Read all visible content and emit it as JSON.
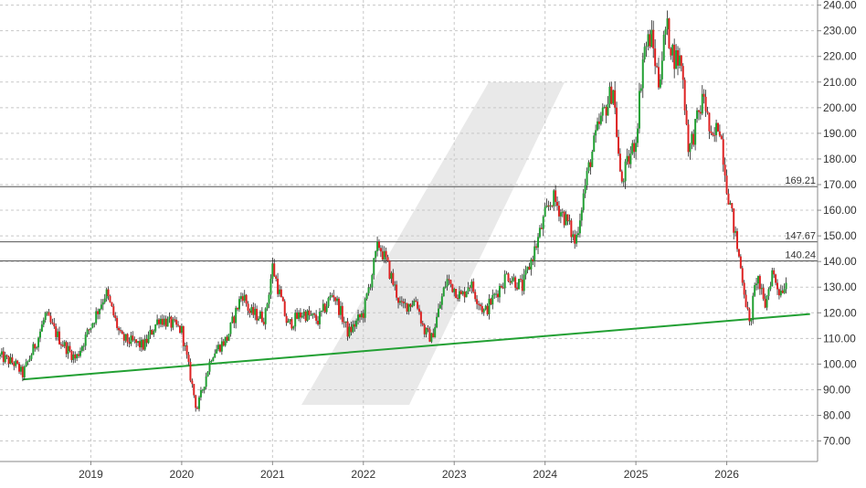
{
  "chart_data": {
    "type": "candlestick",
    "x_ticks": [
      "2019",
      "2020",
      "2021",
      "2022",
      "2023",
      "2024",
      "2025",
      "2026"
    ],
    "y_ticks": [
      "240.00",
      "230.00",
      "220.00",
      "210.00",
      "200.00",
      "190.00",
      "180.00",
      "170.00",
      "160.00",
      "150.00",
      "140.00",
      "130.00",
      "120.00",
      "110.00",
      "100.00",
      "90.00",
      "80.00",
      "70.00"
    ],
    "ylim": [
      62,
      242
    ],
    "xlim": [
      "2018-01",
      "2027-01"
    ],
    "grid": true,
    "horizontal_levels": [
      {
        "value": 169.21,
        "label": "169.21"
      },
      {
        "value": 147.67,
        "label": "147.67"
      },
      {
        "value": 140.24,
        "label": "140.24"
      }
    ],
    "trendline": {
      "start": {
        "x": "2018-04",
        "y": 94
      },
      "end": {
        "x": "2026-12",
        "y": 119.5
      },
      "color": "#22a033"
    },
    "candle_colors": {
      "up": "#22a033",
      "down": "#dd2222"
    },
    "price_path": [
      {
        "x": "2018-01",
        "y": 103
      },
      {
        "x": "2018-03",
        "y": 100
      },
      {
        "x": "2018-04",
        "y": 96
      },
      {
        "x": "2018-06",
        "y": 110
      },
      {
        "x": "2018-07",
        "y": 119
      },
      {
        "x": "2018-09",
        "y": 109
      },
      {
        "x": "2018-11",
        "y": 102
      },
      {
        "x": "2019-01",
        "y": 115
      },
      {
        "x": "2019-03",
        "y": 128
      },
      {
        "x": "2019-05",
        "y": 110
      },
      {
        "x": "2019-08",
        "y": 107
      },
      {
        "x": "2019-10",
        "y": 118
      },
      {
        "x": "2019-12",
        "y": 115
      },
      {
        "x": "2020-01",
        "y": 113
      },
      {
        "x": "2020-03",
        "y": 82
      },
      {
        "x": "2020-05",
        "y": 104
      },
      {
        "x": "2020-07",
        "y": 110
      },
      {
        "x": "2020-09",
        "y": 128
      },
      {
        "x": "2020-10",
        "y": 120
      },
      {
        "x": "2020-12",
        "y": 118
      },
      {
        "x": "2021-01",
        "y": 138
      },
      {
        "x": "2021-03",
        "y": 115
      },
      {
        "x": "2021-05",
        "y": 120
      },
      {
        "x": "2021-07",
        "y": 117
      },
      {
        "x": "2021-09",
        "y": 128
      },
      {
        "x": "2021-11",
        "y": 112
      },
      {
        "x": "2022-01",
        "y": 120
      },
      {
        "x": "2022-03",
        "y": 147
      },
      {
        "x": "2022-04",
        "y": 140
      },
      {
        "x": "2022-06",
        "y": 122
      },
      {
        "x": "2022-08",
        "y": 125
      },
      {
        "x": "2022-09",
        "y": 113
      },
      {
        "x": "2022-10",
        "y": 110
      },
      {
        "x": "2022-12",
        "y": 133
      },
      {
        "x": "2023-02",
        "y": 126
      },
      {
        "x": "2023-03",
        "y": 132
      },
      {
        "x": "2023-05",
        "y": 120
      },
      {
        "x": "2023-08",
        "y": 135
      },
      {
        "x": "2023-10",
        "y": 130
      },
      {
        "x": "2023-12",
        "y": 148
      },
      {
        "x": "2024-01",
        "y": 158
      },
      {
        "x": "2024-02",
        "y": 165
      },
      {
        "x": "2024-04",
        "y": 155
      },
      {
        "x": "2024-05",
        "y": 147
      },
      {
        "x": "2024-06",
        "y": 165
      },
      {
        "x": "2024-07",
        "y": 180
      },
      {
        "x": "2024-08",
        "y": 192
      },
      {
        "x": "2024-10",
        "y": 208
      },
      {
        "x": "2024-11",
        "y": 170
      },
      {
        "x": "2025-01",
        "y": 188
      },
      {
        "x": "2025-02",
        "y": 222
      },
      {
        "x": "2025-03",
        "y": 228
      },
      {
        "x": "2025-04",
        "y": 210
      },
      {
        "x": "2025-05",
        "y": 232
      },
      {
        "x": "2025-06",
        "y": 220
      },
      {
        "x": "2025-07",
        "y": 218
      },
      {
        "x": "2025-08",
        "y": 183
      },
      {
        "x": "2025-10",
        "y": 205
      },
      {
        "x": "2025-11",
        "y": 185
      },
      {
        "x": "2025-12",
        "y": 195
      },
      {
        "x": "2026-01",
        "y": 170
      },
      {
        "x": "2026-02",
        "y": 152
      },
      {
        "x": "2026-03",
        "y": 135
      },
      {
        "x": "2026-04",
        "y": 115
      },
      {
        "x": "2026-05",
        "y": 135
      },
      {
        "x": "2026-06",
        "y": 122
      },
      {
        "x": "2026-07",
        "y": 136
      },
      {
        "x": "2026-08",
        "y": 128
      },
      {
        "x": "2026-09",
        "y": 133
      }
    ]
  }
}
